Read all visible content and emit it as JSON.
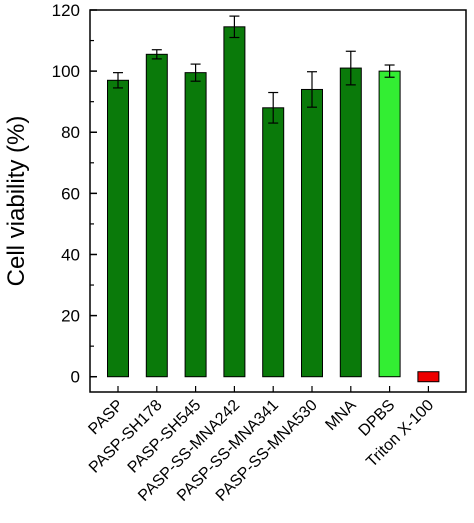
{
  "chart_data": {
    "type": "bar",
    "xlabel": "",
    "ylabel": "Cell viability (%)",
    "ylim": [
      -5,
      120
    ],
    "yticks": [
      0,
      20,
      40,
      60,
      80,
      100,
      120
    ],
    "grid": false,
    "categories": [
      "PASP",
      "PASP-SH178",
      "PASP-SH545",
      "PASP-SS-MNA242",
      "PASP-SS-MNA341",
      "PASP-SS-MNA530",
      "MNA",
      "DPBS",
      "Triton X-100"
    ],
    "values": [
      97,
      105.5,
      99.5,
      114.5,
      88,
      94,
      101,
      100,
      0
    ],
    "errors": [
      2.5,
      1.5,
      2.8,
      3.5,
      5,
      5.8,
      5.5,
      2,
      0
    ],
    "colors": {
      "treatment": "#0a7a0a",
      "control_dpbs": "#33ee33",
      "triton": "#ee0000",
      "edge": "#000000"
    },
    "bar_color_keys": [
      "treatment",
      "treatment",
      "treatment",
      "treatment",
      "treatment",
      "treatment",
      "treatment",
      "control_dpbs",
      "triton"
    ]
  }
}
